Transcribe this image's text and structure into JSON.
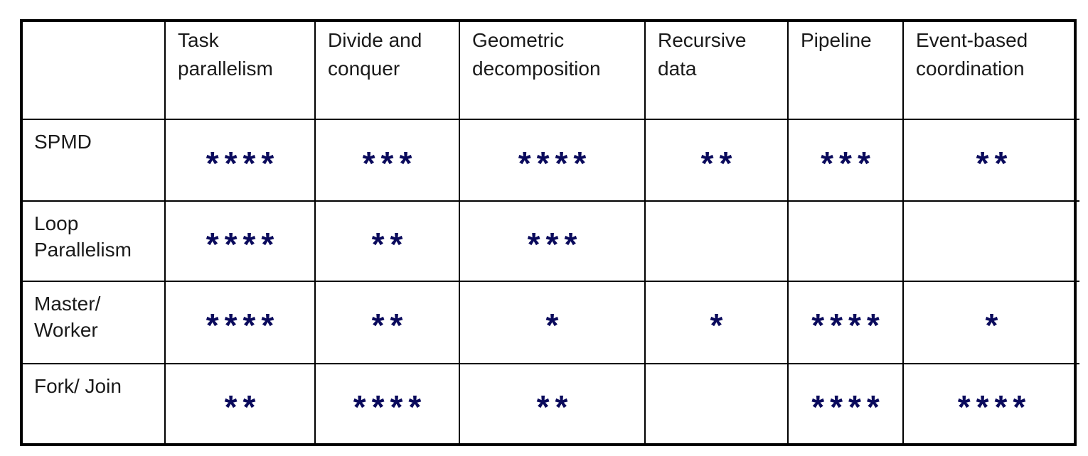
{
  "table": {
    "corner": "",
    "columns": [
      "Task parallelism",
      "Divide and conquer",
      "Geometric decomposition",
      "Recursive data",
      "Pipeline",
      "Event-based coordination"
    ],
    "rows": [
      {
        "label": "SPMD",
        "cells": [
          "****",
          "***",
          "****",
          "**",
          "***",
          "**"
        ]
      },
      {
        "label": "Loop Parallelism",
        "cells": [
          "****",
          "**",
          "***",
          "",
          "",
          ""
        ]
      },
      {
        "label": "Master/ Worker",
        "cells": [
          "****",
          "**",
          "*",
          "*",
          "****",
          "*"
        ]
      },
      {
        "label": "Fork/ Join",
        "cells": [
          "**",
          "****",
          "**",
          "",
          "****",
          "****"
        ]
      }
    ]
  },
  "colors": {
    "star": "#0a0a5c",
    "text": "#1a1a1a",
    "border": "#000000"
  }
}
